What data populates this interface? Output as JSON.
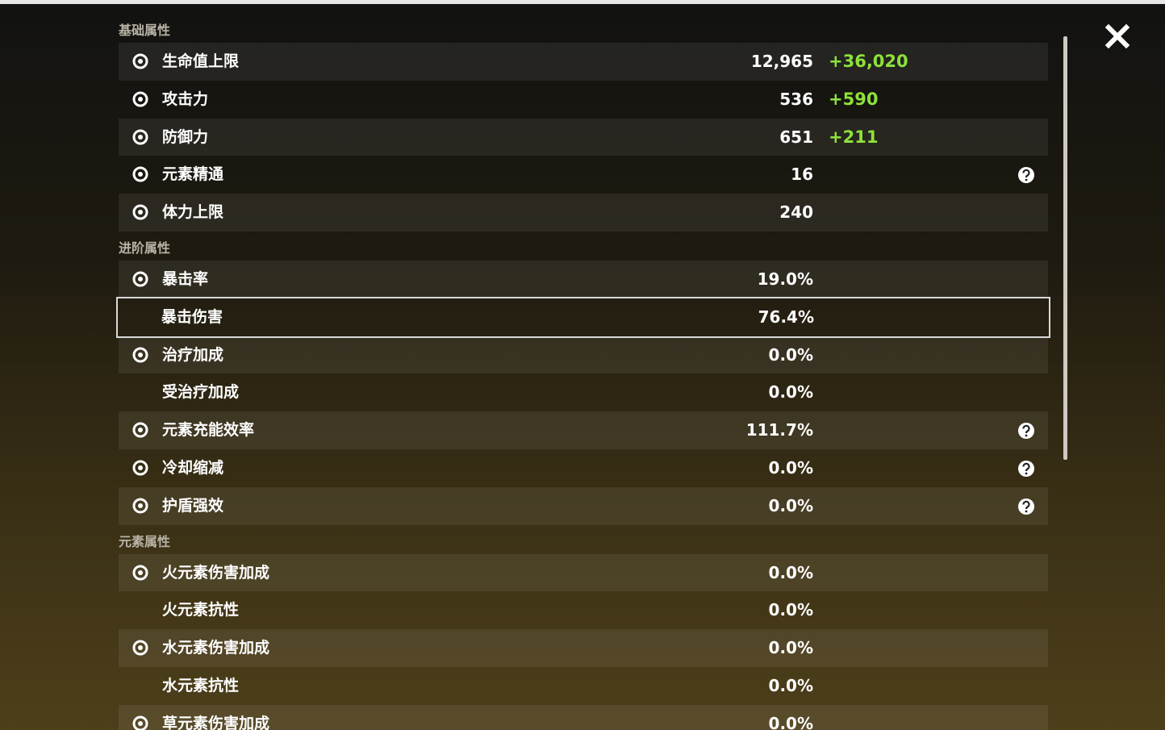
{
  "sections": [
    {
      "title": "基础属性",
      "rows": [
        {
          "name": "生命值上限",
          "value": "12,965",
          "bonus": "+36,020"
        },
        {
          "name": "攻击力",
          "value": "536",
          "bonus": "+590"
        },
        {
          "name": "防御力",
          "value": "651",
          "bonus": "+211"
        },
        {
          "name": "元素精通",
          "value": "16",
          "help": true
        },
        {
          "name": "体力上限",
          "value": "240"
        }
      ]
    },
    {
      "title": "进阶属性",
      "rows": [
        {
          "name": "暴击率",
          "value": "19.0%"
        },
        {
          "name": "暴击伤害",
          "value": "76.4%",
          "selected": true
        },
        {
          "name": "治疗加成",
          "value": "0.0%"
        },
        {
          "name": "受治疗加成",
          "value": "0.0%"
        },
        {
          "name": "元素充能效率",
          "value": "111.7%",
          "help": true
        },
        {
          "name": "冷却缩减",
          "value": "0.0%",
          "help": true
        },
        {
          "name": "护盾强效",
          "value": "0.0%",
          "help": true
        }
      ]
    },
    {
      "title": "元素属性",
      "rows": [
        {
          "name": "火元素伤害加成",
          "value": "0.0%"
        },
        {
          "name": "火元素抗性",
          "value": "0.0%"
        },
        {
          "name": "水元素伤害加成",
          "value": "0.0%"
        },
        {
          "name": "水元素抗性",
          "value": "0.0%"
        },
        {
          "name": "草元素伤害加成",
          "value": "0.0%"
        }
      ]
    }
  ]
}
